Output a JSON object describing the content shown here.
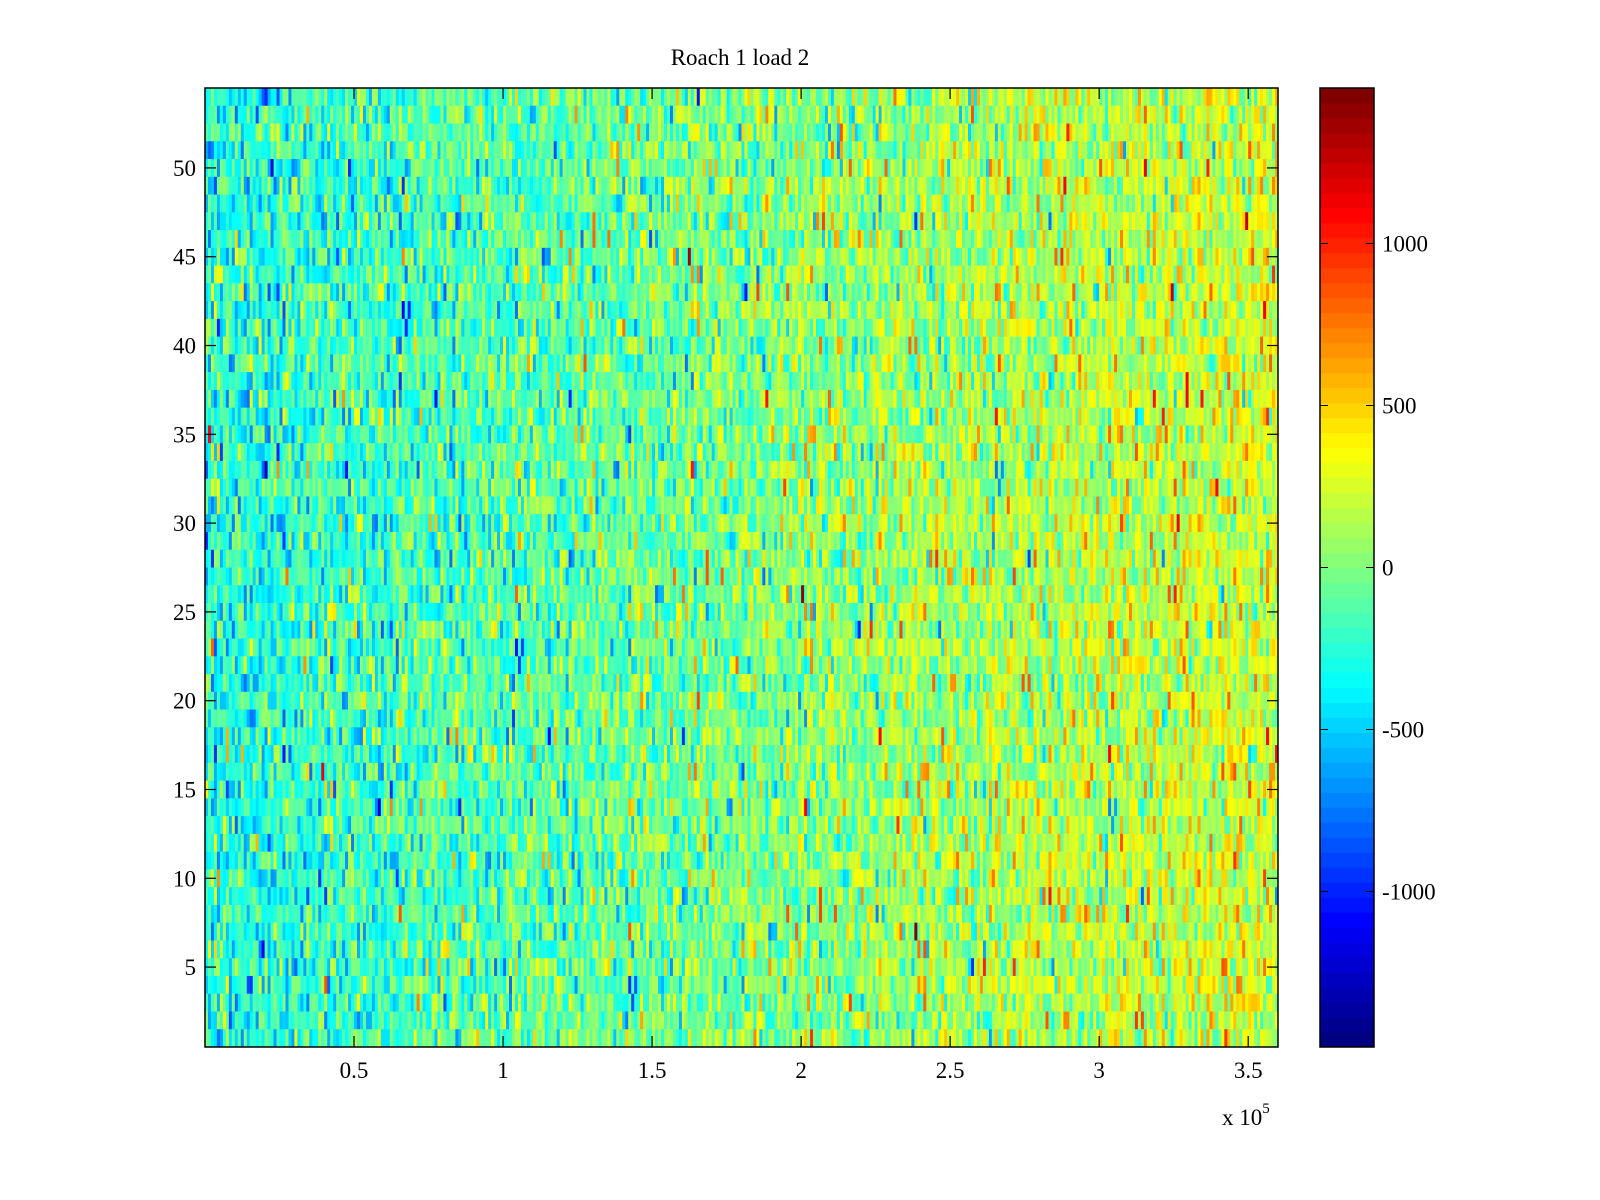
{
  "chart_data": {
    "type": "heatmap",
    "title": "Roach 1 load 2",
    "xlabel": "",
    "ylabel": "",
    "x_multiplier_label": "x 10",
    "x_multiplier_exponent": "5",
    "xlim": [
      0,
      360000
    ],
    "ylim": [
      0.5,
      54.5
    ],
    "xticks": [
      50000,
      100000,
      150000,
      200000,
      250000,
      300000,
      350000
    ],
    "xtick_labels": [
      "0.5",
      "1",
      "1.5",
      "2",
      "2.5",
      "3",
      "3.5"
    ],
    "yticks": [
      5,
      10,
      15,
      20,
      25,
      30,
      35,
      40,
      45,
      50
    ],
    "ytick_labels": [
      "5",
      "10",
      "15",
      "20",
      "25",
      "30",
      "35",
      "40",
      "45",
      "50"
    ],
    "rows": 54,
    "columns_approx": 360,
    "value_trend": {
      "mean_at_xmin": -280,
      "mean_at_xmax": 260,
      "noise_std": 230
    },
    "colormap": "jet",
    "colorbar": {
      "clim": [
        -1480,
        1480
      ],
      "ticks": [
        -1000,
        -500,
        0,
        500,
        1000
      ],
      "tick_labels": [
        "-1000",
        "-500",
        "0",
        "500",
        "1000"
      ],
      "placement": "right"
    },
    "grid": false
  }
}
